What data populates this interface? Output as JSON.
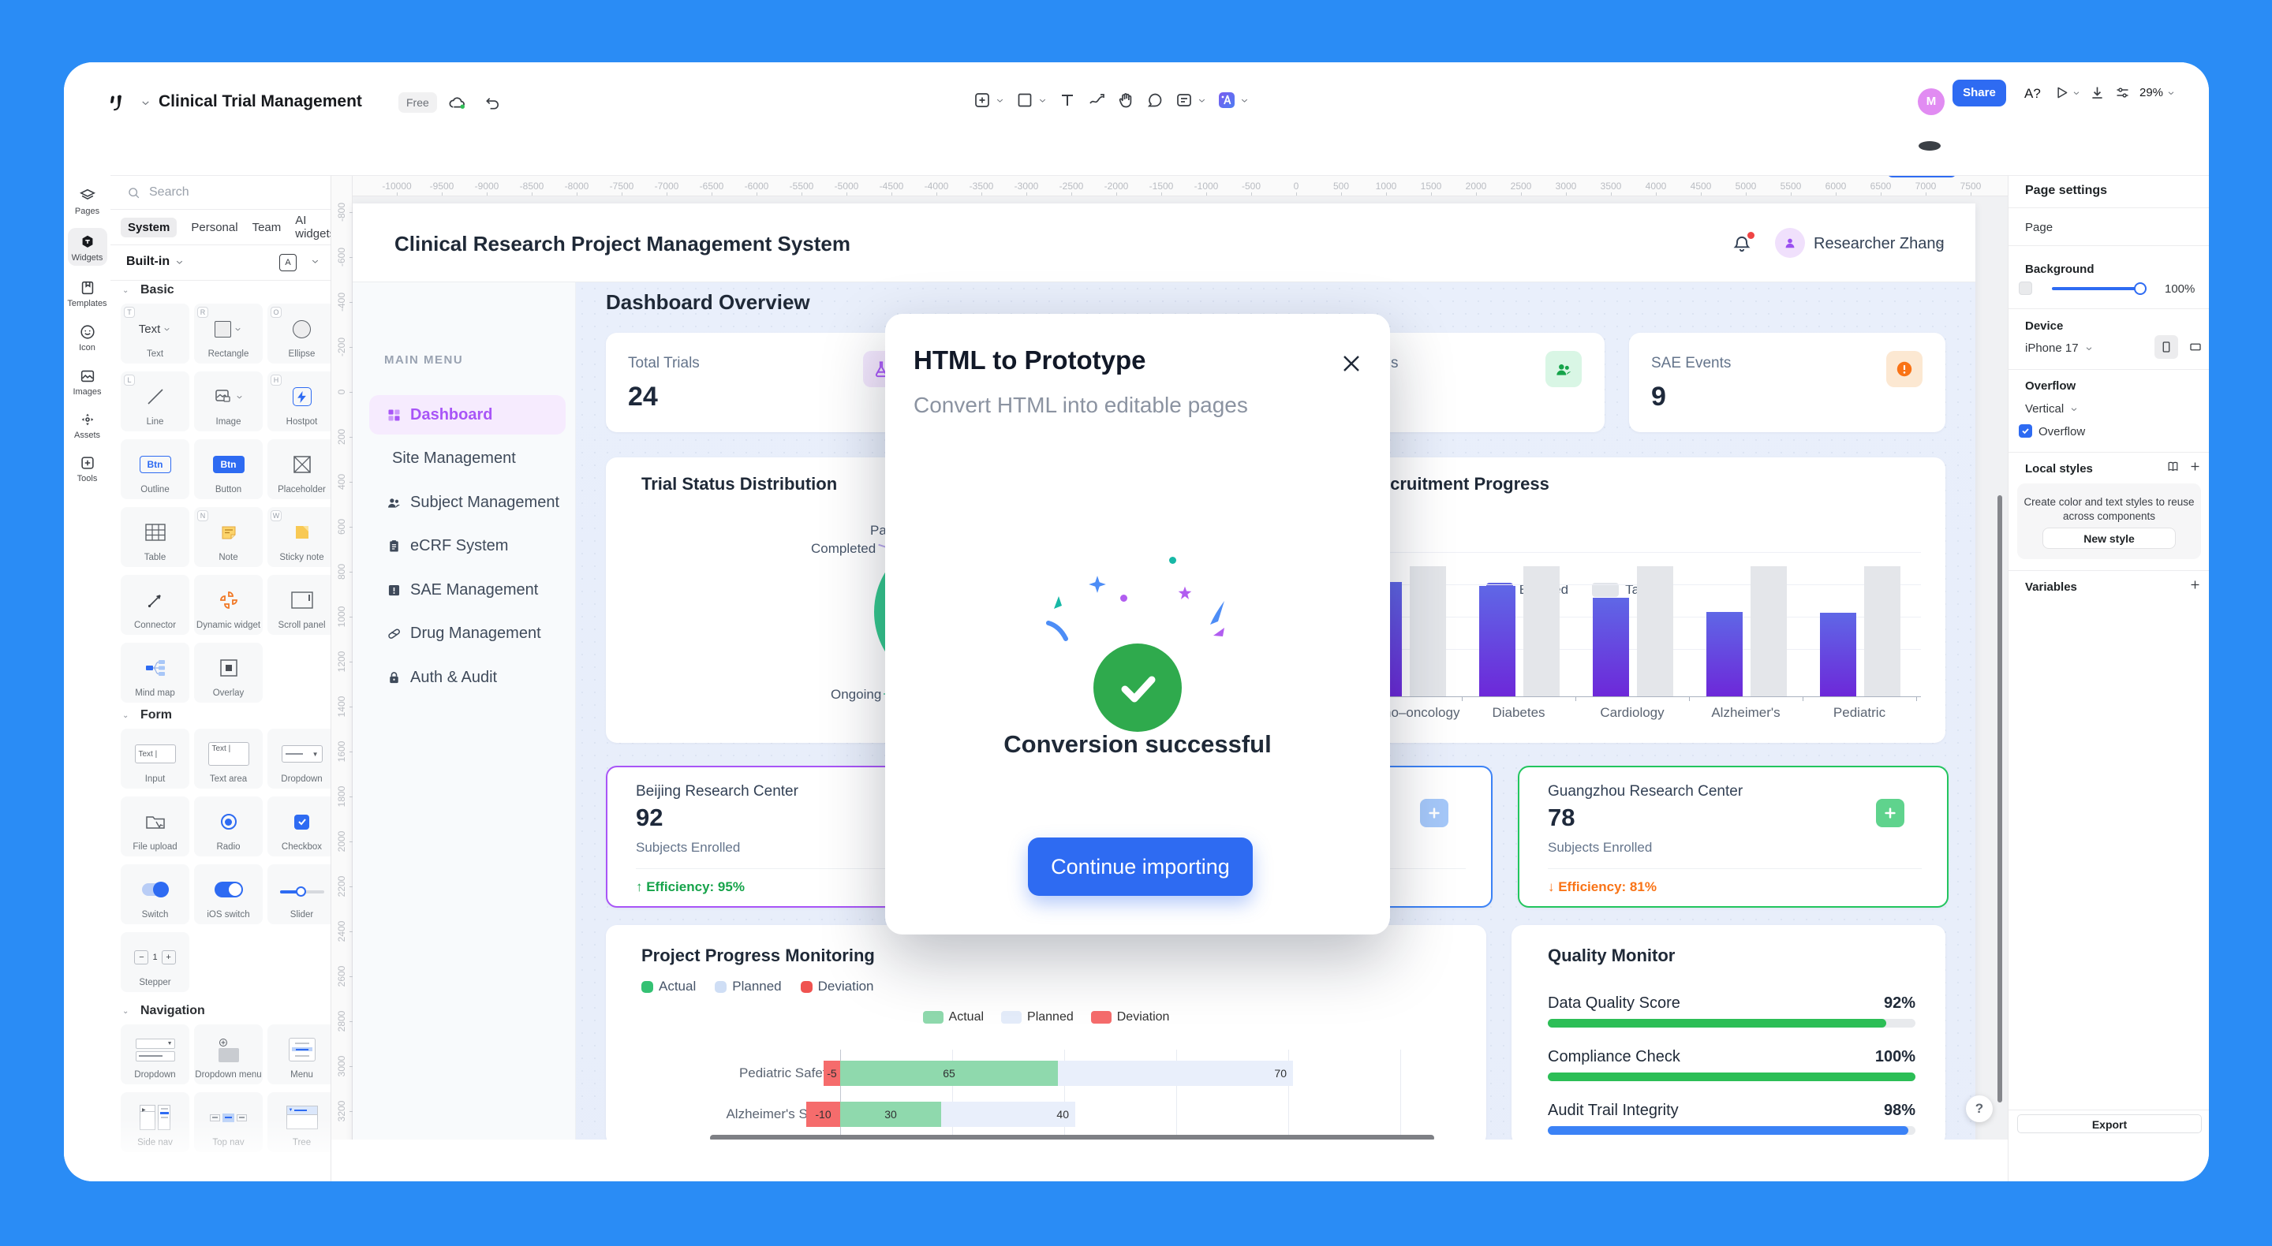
{
  "toolbar": {
    "logo_icon": "app-logo",
    "title": "Clinical Trial Management",
    "badge": "Free",
    "share_label": "Share",
    "avatar_initial": "M",
    "zoom_level": "29%",
    "preview_label": "A?"
  },
  "icon_sidebar": {
    "items": [
      {
        "label": "Pages",
        "icon": "pages-icon",
        "active": false
      },
      {
        "label": "Widgets",
        "icon": "widgets-icon",
        "active": true
      },
      {
        "label": "Templates",
        "icon": "templates-icon",
        "active": false
      },
      {
        "label": "Icon",
        "icon": "smiley-icon",
        "active": false
      },
      {
        "label": "Images",
        "icon": "images-icon",
        "active": false
      },
      {
        "label": "Assets",
        "icon": "assets-icon",
        "active": false
      },
      {
        "label": "Tools",
        "icon": "tools-icon",
        "active": false
      }
    ]
  },
  "widgets_panel": {
    "search_placeholder": "Search",
    "tabs": [
      "System",
      "Personal",
      "Team",
      "AI widgets"
    ],
    "active_tab": "System",
    "library": "Built-in",
    "sections": [
      {
        "title": "Basic",
        "items": [
          {
            "label": "Text",
            "badge": "T",
            "icon": "text-widget",
            "chevron": true
          },
          {
            "label": "Rectangle",
            "badge": "R",
            "icon": "rectangle-widget",
            "chevron": true
          },
          {
            "label": "Ellipse",
            "badge": "O",
            "icon": "ellipse-widget"
          },
          {
            "label": "Line",
            "badge": "L",
            "icon": "line-widget"
          },
          {
            "label": "Image",
            "icon": "image-widget",
            "chevron": true
          },
          {
            "label": "Hostpot",
            "badge": "H",
            "icon": "hotspot-widget"
          },
          {
            "label": "Outline",
            "icon": "outline-button-widget"
          },
          {
            "label": "Button",
            "icon": "button-widget"
          },
          {
            "label": "Placeholder",
            "icon": "placeholder-widget"
          },
          {
            "label": "Table",
            "icon": "table-widget"
          },
          {
            "label": "Note",
            "badge": "N",
            "icon": "note-widget"
          },
          {
            "label": "Sticky note",
            "badge": "W",
            "icon": "sticky-note-widget"
          },
          {
            "label": "Connector",
            "icon": "connector-widget"
          },
          {
            "label": "Dynamic widget",
            "icon": "dynamic-widget"
          },
          {
            "label": "Scroll panel",
            "icon": "scroll-panel-widget"
          },
          {
            "label": "Mind map",
            "icon": "mind-map-widget"
          },
          {
            "label": "Overlay",
            "icon": "overlay-widget"
          }
        ]
      },
      {
        "title": "Form",
        "items": [
          {
            "label": "Input",
            "icon": "input-widget"
          },
          {
            "label": "Text area",
            "icon": "textarea-widget"
          },
          {
            "label": "Dropdown",
            "icon": "dropdown-widget"
          },
          {
            "label": "File upload",
            "icon": "file-upload-widget"
          },
          {
            "label": "Radio",
            "icon": "radio-widget"
          },
          {
            "label": "Checkbox",
            "icon": "checkbox-widget"
          },
          {
            "label": "Switch",
            "icon": "switch-widget"
          },
          {
            "label": "iOS switch",
            "icon": "ios-switch-widget"
          },
          {
            "label": "Slider",
            "icon": "slider-widget"
          },
          {
            "label": "Stepper",
            "icon": "stepper-widget"
          }
        ]
      },
      {
        "title": "Navigation",
        "items": [
          {
            "label": "Dropdown",
            "icon": "nav-dropdown-widget"
          },
          {
            "label": "Dropdown menu",
            "icon": "nav-dropdown-menu-widget"
          },
          {
            "label": "Menu",
            "icon": "nav-menu-widget"
          },
          {
            "label": "Side nav",
            "icon": "side-nav-widget"
          },
          {
            "label": "Top nav",
            "icon": "top-nav-widget"
          },
          {
            "label": "Tree",
            "icon": "tree-widget"
          }
        ]
      }
    ]
  },
  "ruler": {
    "h_start": -10000,
    "h_end": 7500,
    "h_step": 500,
    "v_start": -800,
    "v_end": 3400,
    "v_step": 200
  },
  "app": {
    "header": {
      "title": "Clinical Research Project Management System",
      "user": "Researcher Zhang"
    },
    "nav": {
      "title": "MAIN MENU",
      "items": [
        {
          "label": "Dashboard",
          "icon": "dashboard-icon",
          "active": true
        },
        {
          "label": "Site Management",
          "icon": null,
          "active": false
        },
        {
          "label": "Subject Management",
          "icon": "subjects-icon",
          "active": false
        },
        {
          "label": "eCRF System",
          "icon": "ecrf-icon",
          "active": false
        },
        {
          "label": "SAE Management",
          "icon": "sae-icon",
          "active": false
        },
        {
          "label": "Drug Management",
          "icon": "drug-icon",
          "active": false
        },
        {
          "label": "Auth & Audit",
          "icon": "auth-icon",
          "active": false
        }
      ]
    },
    "overview_title": "Dashboard Overview",
    "stat_cards": [
      {
        "label": "Total Trials",
        "value": "24",
        "icon": "trials-icon",
        "icon_bg": "#f3e7fd",
        "icon_color": "#a855f7"
      },
      {
        "label": "",
        "value": "",
        "icon": null,
        "hidden_behind_dialog": true
      },
      {
        "label_fragment": "s",
        "value": "",
        "icon": "users-icon",
        "icon_bg": "#d9f6e5",
        "icon_color": "#16a34a"
      },
      {
        "label": "SAE Events",
        "value": "9",
        "icon": "alert-icon",
        "icon_bg": "#fce8d2",
        "icon_color": "#f97316"
      }
    ],
    "pie_chart": {
      "title": "Trial Status Distribution",
      "labels": [
        {
          "text": "Pa"
        },
        {
          "text": "Completed"
        },
        {
          "text": "Ongoing"
        }
      ],
      "colors": {
        "ongoing": "#35c98e",
        "completed": "#a78bfa"
      }
    },
    "recruit_chart": {
      "title": "Recruitment Progress",
      "legend": [
        {
          "label": "Enrolled",
          "color": "#5f63d6"
        },
        {
          "label": "Target",
          "color": "#e2e5ea"
        }
      ],
      "categories": [
        "",
        "Immuno–oncology",
        "Diabetes",
        "Cardiology",
        "Alzheimer's",
        "Pediatric"
      ],
      "enrolled": [
        90,
        88,
        85,
        76,
        65,
        64
      ],
      "target": [
        100,
        100,
        100,
        100,
        100,
        100
      ]
    },
    "centers": [
      {
        "name": "Beijing Research Center",
        "value": "92",
        "sub": "Subjects Enrolled",
        "trend": "up",
        "trend_text": "↑ Efficiency: 95%",
        "trend_color": "#16a34a",
        "border": "#a855f7",
        "icon": null
      },
      {
        "name": "",
        "value": "",
        "sub": "",
        "hidden_behind_dialog": true,
        "border": "#3b82f6",
        "icon": "plus-icon",
        "icon_bg": "#a5c8f9"
      },
      {
        "name": "Guangzhou Research Center",
        "value": "78",
        "sub": "Subjects Enrolled",
        "trend": "down",
        "trend_text": "↓ Efficiency: 81%",
        "trend_color": "#f97316",
        "border": "#22c55e",
        "icon": "plus-icon",
        "icon_bg": "#5fd38d"
      }
    ],
    "progress_chart": {
      "title": "Project Progress Monitoring",
      "legend": [
        {
          "label": "Actual",
          "color": "#34c173"
        },
        {
          "label": "Planned",
          "color": "#cfdef5"
        },
        {
          "label": "Deviation",
          "color": "#ef5350"
        }
      ],
      "inner_legend": [
        {
          "label": "Actual",
          "color": "#8fd9ad"
        },
        {
          "label": "Planned",
          "color": "#e4ecfa"
        },
        {
          "label": "Deviation",
          "color": "#f56c6c"
        }
      ],
      "rows": [
        {
          "name": "Pediatric Safety",
          "deviation": -5,
          "actual": 65,
          "planned": 70
        },
        {
          "name": "Alzheimer's Study",
          "deviation": -10,
          "actual": 30,
          "planned": 40
        }
      ]
    },
    "quality": {
      "title": "Quality Monitor",
      "rows": [
        {
          "label": "Data Quality Score",
          "value": "92%",
          "pct": 92,
          "color": "#2cbe56"
        },
        {
          "label": "Compliance Check",
          "value": "100%",
          "pct": 100,
          "color": "#2cbe56"
        },
        {
          "label": "Audit Trail Integrity",
          "value": "98%",
          "pct": 98,
          "color": "#3b82f6"
        }
      ]
    }
  },
  "modal": {
    "title": "HTML to Prototype",
    "subtitle": "Convert HTML into editable pages",
    "status": "Conversion successful",
    "button": "Continue importing",
    "success_color": "#2faa4d"
  },
  "page_settings": {
    "title": "Page settings",
    "page_label": "Page",
    "background_label": "Background",
    "background_value": "100%",
    "device_label": "Device",
    "device_value": "iPhone 17",
    "overflow_label": "Overflow",
    "overflow_mode": "Vertical",
    "overflow_checkbox": "Overflow",
    "local_styles_label": "Local styles",
    "local_styles_hint1": "Create color and text styles to reuse",
    "local_styles_hint2": "across components",
    "new_style_label": "New style",
    "variables_label": "Variables",
    "export_label": "Export"
  },
  "help_label": "?",
  "chart_data": [
    {
      "type": "pie",
      "title": "Trial Status Distribution",
      "labels_visible": [
        "Pa",
        "Completed",
        "Ongoing"
      ],
      "note": "mostly hidden behind dialog"
    },
    {
      "type": "bar",
      "title": "Recruitment Progress",
      "categories": [
        "(hidden)",
        "Immuno-oncology",
        "Diabetes",
        "Cardiology",
        "Alzheimer's",
        "Pediatric"
      ],
      "series": [
        {
          "name": "Enrolled",
          "values": [
            null,
            88,
            85,
            76,
            65,
            64
          ]
        },
        {
          "name": "Target",
          "values": [
            100,
            100,
            100,
            100,
            100,
            100
          ]
        }
      ]
    },
    {
      "type": "bar",
      "title": "Project Progress Monitoring",
      "categories": [
        "Pediatric Safety",
        "Alzheimer's Study"
      ],
      "series": [
        {
          "name": "Deviation",
          "values": [
            -5,
            -10
          ]
        },
        {
          "name": "Actual",
          "values": [
            65,
            30
          ]
        },
        {
          "name": "Planned",
          "values": [
            70,
            40
          ]
        }
      ]
    },
    {
      "type": "table",
      "title": "Quality Monitor",
      "rows": [
        [
          "Data Quality Score",
          "92%"
        ],
        [
          "Compliance Check",
          "100%"
        ],
        [
          "Audit Trail Integrity",
          "98%"
        ]
      ]
    }
  ]
}
